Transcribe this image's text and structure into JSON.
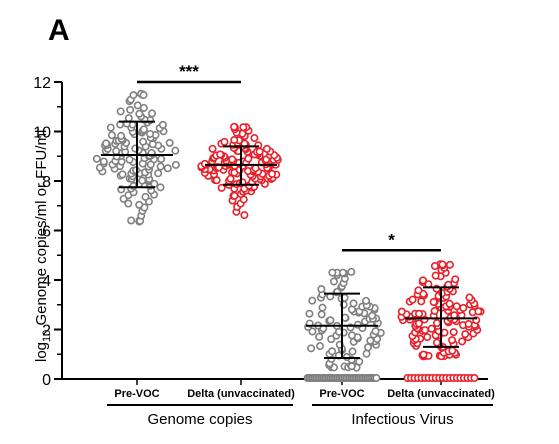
{
  "panel_label": "A",
  "chart_data": {
    "type": "scatter",
    "ylabel_prefix": "log",
    "ylabel_subscript": "10",
    "ylabel_rest": " Genome copies/ml or  FFU/ml",
    "ylim": [
      0,
      12
    ],
    "yticks": [
      0,
      2,
      4,
      6,
      8,
      10,
      12
    ],
    "categories": [
      "Pre-VOC",
      "Delta (unvaccinated)",
      "Pre-VOC",
      "Delta (unvaccinated)"
    ],
    "groups": [
      {
        "label": "Genome copies",
        "categories": [
          0,
          1
        ]
      },
      {
        "label": "Infectious Virus",
        "categories": [
          2,
          3
        ]
      }
    ],
    "series": [
      {
        "category": "Pre-VOC",
        "group": "Genome copies",
        "color": "#808080",
        "n": 130,
        "mean": 9.05,
        "sd_low": 7.75,
        "sd_high": 10.4,
        "min": 6.4,
        "max": 11.5,
        "zeros": 0
      },
      {
        "category": "Delta (unvaccinated)",
        "group": "Genome copies",
        "color": "#e8202a",
        "n": 140,
        "mean": 8.65,
        "sd_low": 7.85,
        "sd_high": 9.4,
        "min": 6.6,
        "max": 10.2,
        "zeros": 0
      },
      {
        "category": "Pre-VOC",
        "group": "Infectious Virus",
        "color": "#808080",
        "n": 140,
        "mean": 2.15,
        "sd_low": 0.85,
        "sd_high": 3.45,
        "min": 0.5,
        "max": 4.3,
        "zeros": 40
      },
      {
        "category": "Delta (unvaccinated)",
        "group": "Infectious Virus",
        "color": "#e8202a",
        "n": 150,
        "mean": 2.45,
        "sd_low": 1.3,
        "sd_high": 3.7,
        "min": 0.95,
        "max": 4.6,
        "zeros": 20
      }
    ],
    "significance": [
      {
        "between": [
          0,
          1
        ],
        "y": 12.0,
        "label": "***"
      },
      {
        "between": [
          2,
          3
        ],
        "y": 5.2,
        "label": "*"
      }
    ]
  }
}
